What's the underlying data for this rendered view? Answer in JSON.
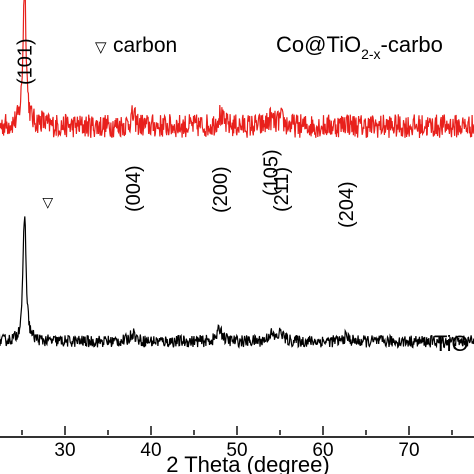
{
  "chart_data": {
    "type": "line",
    "title": "",
    "xlabel": "2 Theta (degree)",
    "ylabel": "",
    "xlim": [
      20,
      80
    ],
    "x_ticks": [
      30,
      40,
      50,
      60,
      70
    ],
    "grid": false,
    "legend": {
      "marker": "▽",
      "label": "carbon",
      "color": "#1a1ad6"
    },
    "series": [
      {
        "name": "Co@TiO2-x-carbo",
        "name_base": "Co@TiO",
        "name_sub": "2-x",
        "name_rest": "-carbo",
        "color": "#e8201c",
        "baseline": 0.71,
        "noise": 0.055
      },
      {
        "name": "TiO",
        "color": "#000000",
        "baseline": 0.215,
        "noise": 0.028
      }
    ],
    "peaks": [
      {
        "x": 25.3,
        "label": "(101)",
        "h_top": 1.0,
        "h_bottom": 1.0
      },
      {
        "x": 27.3,
        "label": "",
        "h_top": 0.03,
        "h_bottom": 0.0,
        "marker": "carbon"
      },
      {
        "x": 37.9,
        "label": "(004)",
        "h_top": 0.07,
        "h_bottom": 0.07
      },
      {
        "x": 48.0,
        "label": "(200)",
        "h_top": 0.08,
        "h_bottom": 0.1
      },
      {
        "x": 53.9,
        "label": "(105)",
        "h_top": 0.05,
        "h_bottom": 0.06
      },
      {
        "x": 55.1,
        "label": "(211)",
        "h_top": 0.05,
        "h_bottom": 0.07
      },
      {
        "x": 62.7,
        "label": "(204)",
        "h_top": 0.03,
        "h_bottom": 0.04
      }
    ]
  }
}
